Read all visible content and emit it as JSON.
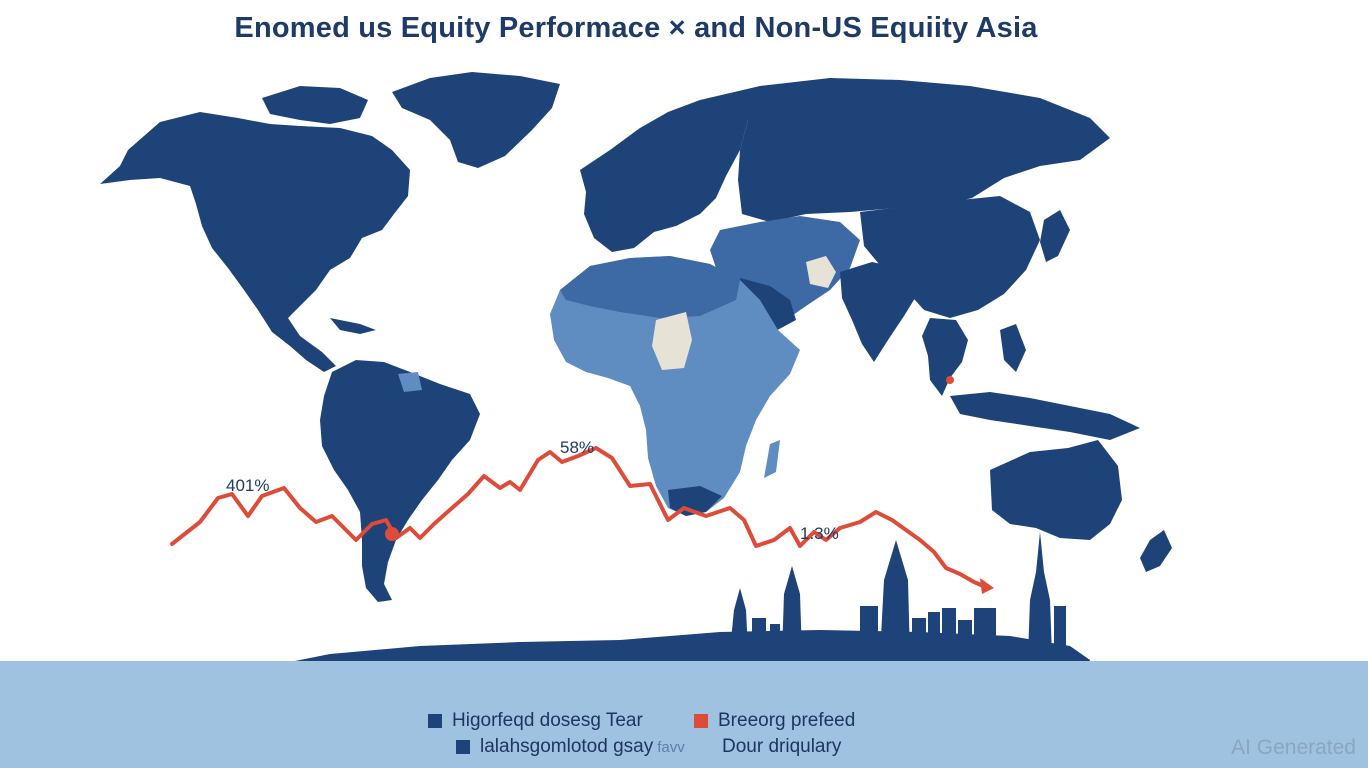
{
  "title": "Enomed us Equity Performace × and Non-US Equiity Asia",
  "colors": {
    "map_dark": "#1e4378",
    "map_mid": "#3d69a5",
    "map_light": "#5f8cc1",
    "map_pale": "#e6e3d6",
    "line": "#de4b38",
    "band": "#9ec2e0"
  },
  "annotations": {
    "left": "401%",
    "middle": "58%",
    "right": "1.3%"
  },
  "legend": {
    "item1": "Higorfeqd dosesɡ Tear",
    "item2": "Breeorg prefeed",
    "item3": "lalahsgomlotod gsay",
    "item3_faint": "favv",
    "item4": "Dour driqulary"
  },
  "watermark": "AI Generated"
}
